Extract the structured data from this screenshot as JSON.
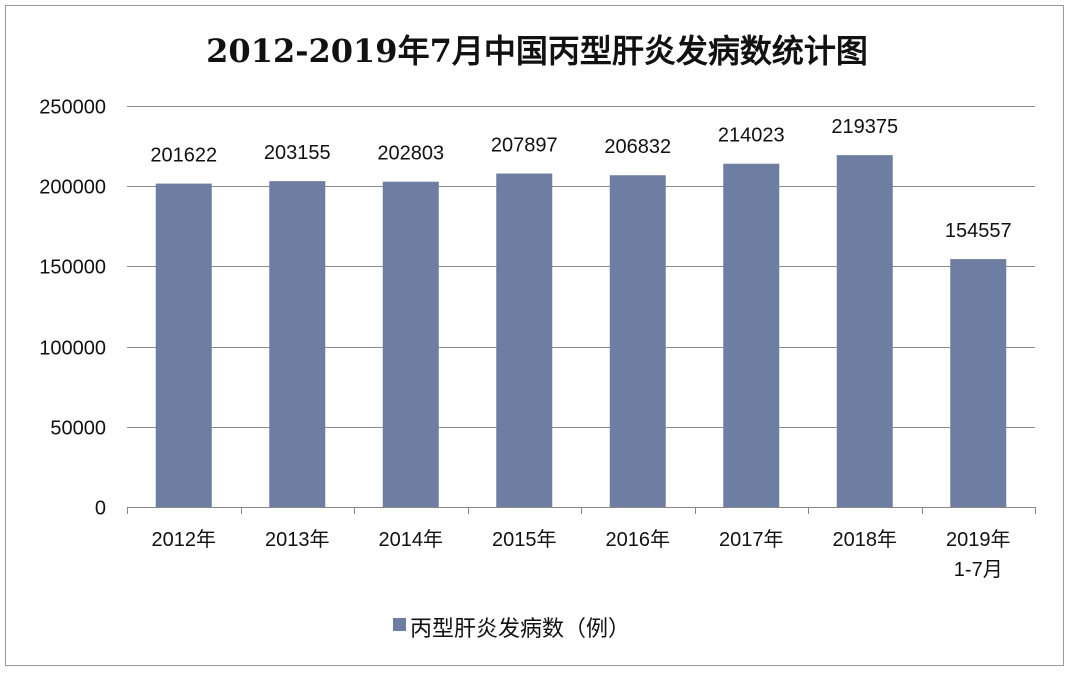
{
  "chart_data": {
    "type": "bar",
    "title": "2012-2019年7月中国丙型肝炎发病数统计图",
    "categories": [
      "2012年",
      "2013年",
      "2014年",
      "2015年",
      "2016年",
      "2017年",
      "2018年",
      "2019年\n1-7月"
    ],
    "series": [
      {
        "name": "丙型肝炎发病数（例）",
        "values": [
          201622,
          203155,
          202803,
          207897,
          206832,
          214023,
          219375,
          154557
        ]
      }
    ],
    "xlabel": "",
    "ylabel": "",
    "ylim": [
      0,
      250000
    ],
    "yticks": [
      "0",
      "50000",
      "100000",
      "150000",
      "200000",
      "250000"
    ],
    "grid": true,
    "legend": "bottom",
    "colors": {
      "bar": "#6e7ea2",
      "grid": "#8c8c8c",
      "border": "#999999"
    }
  }
}
